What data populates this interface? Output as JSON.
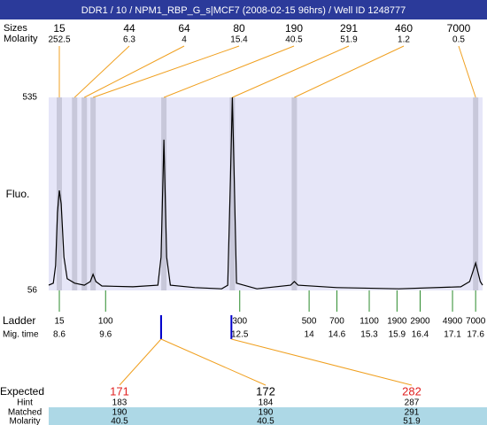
{
  "chart_data": {
    "type": "electropherogram",
    "title": "DDR1 / 10 / NPM1_RBP_G_s|MCF7 (2008-02-15 96hrs) / Well ID 1248777",
    "ylabel": "Fluo.",
    "xlim": [
      8.37,
      17.75
    ],
    "ylim": [
      56,
      535
    ],
    "yticks": [
      56,
      535
    ],
    "color": "#000000",
    "x": [
      8.37,
      8.47,
      8.52,
      8.56,
      8.6,
      8.64,
      8.7,
      8.77,
      8.93,
      9.14,
      9.27,
      9.33,
      9.39,
      9.52,
      10.19,
      10.73,
      10.8,
      10.86,
      10.92,
      11.0,
      11.53,
      12.11,
      12.24,
      12.3,
      12.34,
      12.38,
      12.43,
      12.87,
      13.6,
      13.68,
      13.76,
      14.6,
      15.94,
      17.28,
      17.47,
      17.6,
      17.7,
      17.75
    ],
    "values": [
      69,
      74,
      118,
      249,
      304,
      271,
      139,
      85,
      74,
      69,
      78,
      96,
      78,
      67,
      65,
      69,
      139,
      430,
      139,
      69,
      63,
      60,
      69,
      337,
      535,
      337,
      74,
      60,
      69,
      78,
      69,
      63,
      60,
      65,
      78,
      124,
      78,
      69
    ],
    "peaks": {
      "size_label": "Sizes",
      "molarity_label": "Molarity",
      "color": "#f0a020",
      "sizes": [
        15,
        44,
        64,
        80,
        190,
        291,
        460,
        7000
      ],
      "molarity": [
        252.5,
        6.3,
        4,
        15.4,
        40.5,
        51.9,
        1.2,
        0.5
      ],
      "times": [
        8.6,
        8.93,
        9.14,
        9.33,
        10.86,
        12.34,
        13.68,
        17.6
      ]
    },
    "ladder": {
      "label": "Ladder",
      "time_label": "Mig. time",
      "color": "#2a8a2a",
      "sizes": [
        15,
        100,
        300,
        500,
        700,
        1100,
        1900,
        2900,
        4900,
        7000
      ],
      "times": [
        8.6,
        9.6,
        12.5,
        14,
        14.6,
        15.3,
        15.9,
        16.4,
        17.1,
        17.6
      ]
    },
    "table": {
      "expected_label": "Expected",
      "hint_label": "Hint",
      "matched_label": "Matched",
      "molarity_label": "Molarity",
      "marker_color": "#0000cc",
      "columns": [
        {
          "expected": 171,
          "color": "#e02020",
          "hint": 183,
          "matched": 190,
          "molarity": 40.5,
          "time": 10.8
        },
        {
          "expected": 172,
          "color": "#000000",
          "hint": 184,
          "matched": 190,
          "molarity": 40.5,
          "time": 10.8
        },
        {
          "expected": 282,
          "color": "#e02020",
          "hint": 287,
          "matched": 291,
          "molarity": 51.9,
          "time": 12.32
        }
      ]
    }
  }
}
